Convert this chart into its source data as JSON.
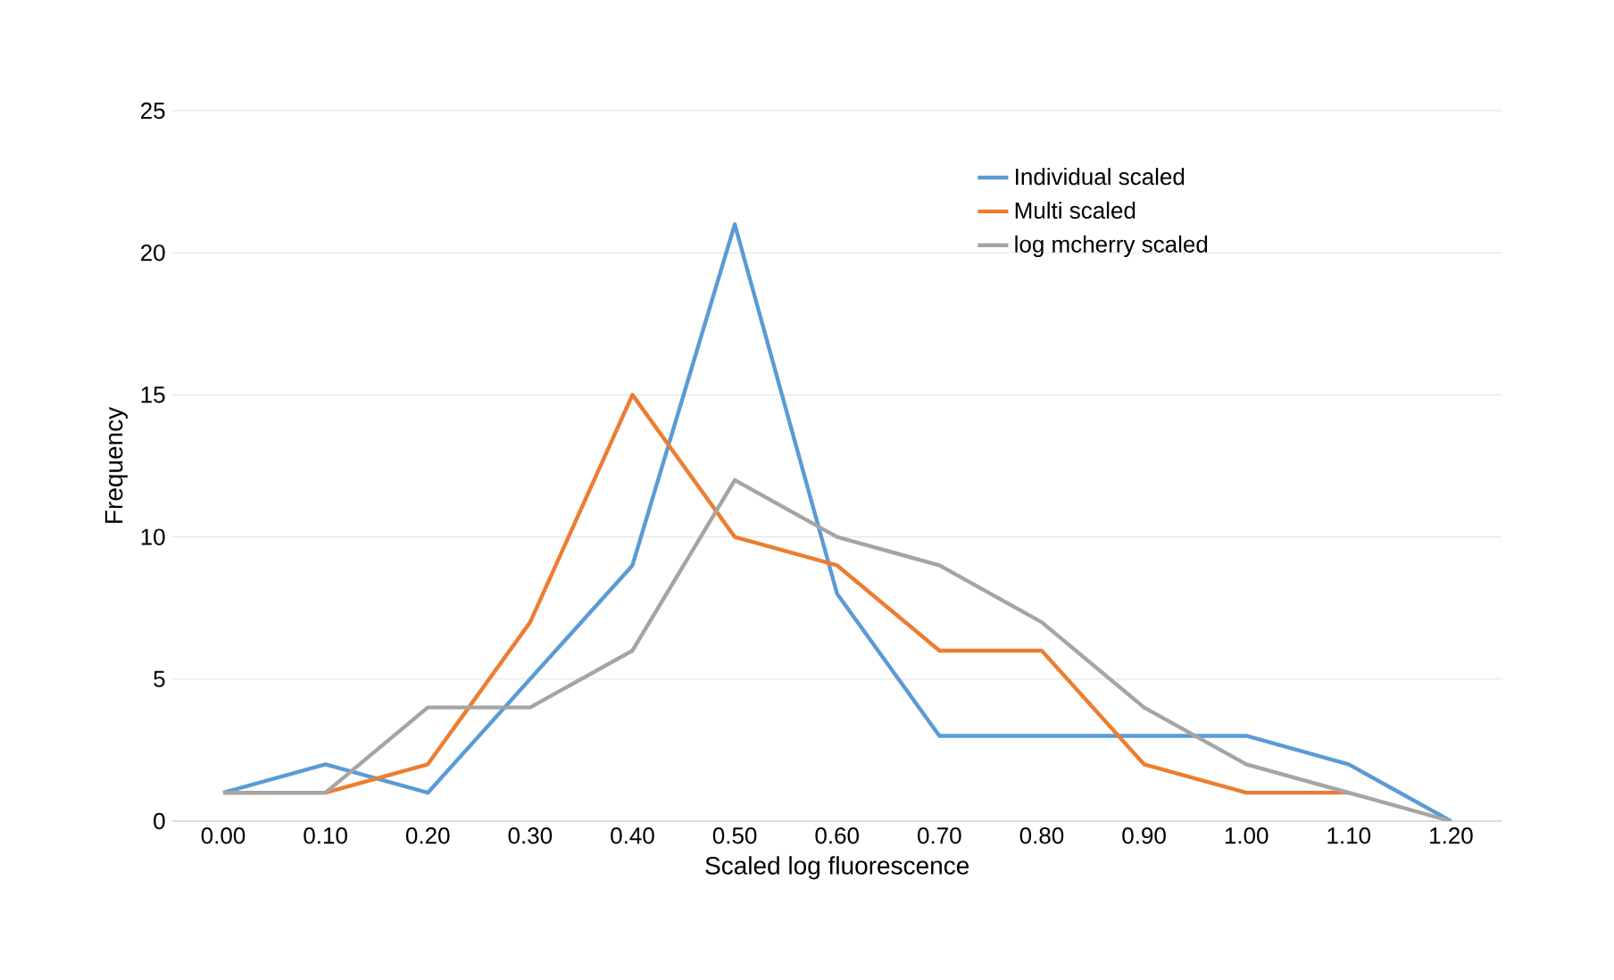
{
  "chart_data": {
    "type": "line",
    "xlabel": "Scaled log fluorescence",
    "ylabel": "Frequency",
    "categories": [
      "0.00",
      "0.10",
      "0.20",
      "0.30",
      "0.40",
      "0.50",
      "0.60",
      "0.70",
      "0.80",
      "0.90",
      "1.00",
      "1.10",
      "1.20"
    ],
    "series": [
      {
        "name": "Individual scaled",
        "color": "#5b9bd5",
        "values": [
          1,
          2,
          1,
          5,
          9,
          21,
          8,
          3,
          3,
          3,
          3,
          2,
          0
        ]
      },
      {
        "name": "Multi scaled",
        "color": "#ed7d31",
        "values": [
          1,
          1,
          2,
          7,
          15,
          10,
          9,
          6,
          6,
          2,
          1,
          1,
          null
        ]
      },
      {
        "name": "log mcherry scaled",
        "color": "#a5a5a5",
        "values": [
          1,
          1,
          4,
          4,
          6,
          12,
          10,
          9,
          7,
          4,
          2,
          1,
          0
        ]
      }
    ],
    "ylim": [
      0,
      25
    ],
    "yticks": [
      0,
      5,
      10,
      15,
      20,
      25
    ],
    "grid": "y",
    "legend": "top right",
    "marker": "none",
    "line_style": "solid"
  }
}
